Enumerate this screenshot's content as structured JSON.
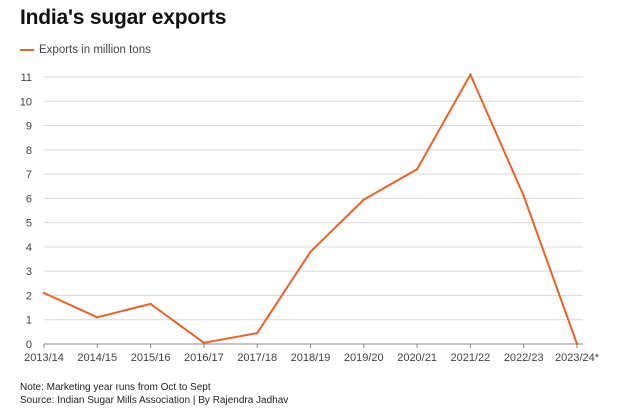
{
  "title": "India's sugar exports",
  "colors": {
    "series": "#e8632a",
    "grid": "#d9d9d9",
    "axis": "#888888",
    "text": "#444444"
  },
  "chart_data": {
    "type": "line",
    "title": "India's sugar exports",
    "categories": [
      "2013/14",
      "2014/15",
      "2015/16",
      "2016/17",
      "2017/18",
      "2018/19",
      "2019/20",
      "2020/21",
      "2021/22",
      "2022/23",
      "2023/24*"
    ],
    "series": [
      {
        "name": "Exports in million tons",
        "values": [
          2.1,
          1.1,
          1.65,
          0.05,
          0.45,
          3.8,
          5.95,
          7.2,
          11.1,
          6.1,
          0
        ]
      }
    ],
    "ylim": [
      0,
      11
    ],
    "yticks": [
      0,
      1,
      2,
      3,
      4,
      5,
      6,
      7,
      8,
      9,
      10,
      11
    ],
    "grid": true,
    "legend_position": "top-left"
  },
  "footer": {
    "note": "Note: Marketing year runs from Oct to Sept",
    "source": "Source: Indian Sugar Mills Association | By Rajendra Jadhav"
  }
}
